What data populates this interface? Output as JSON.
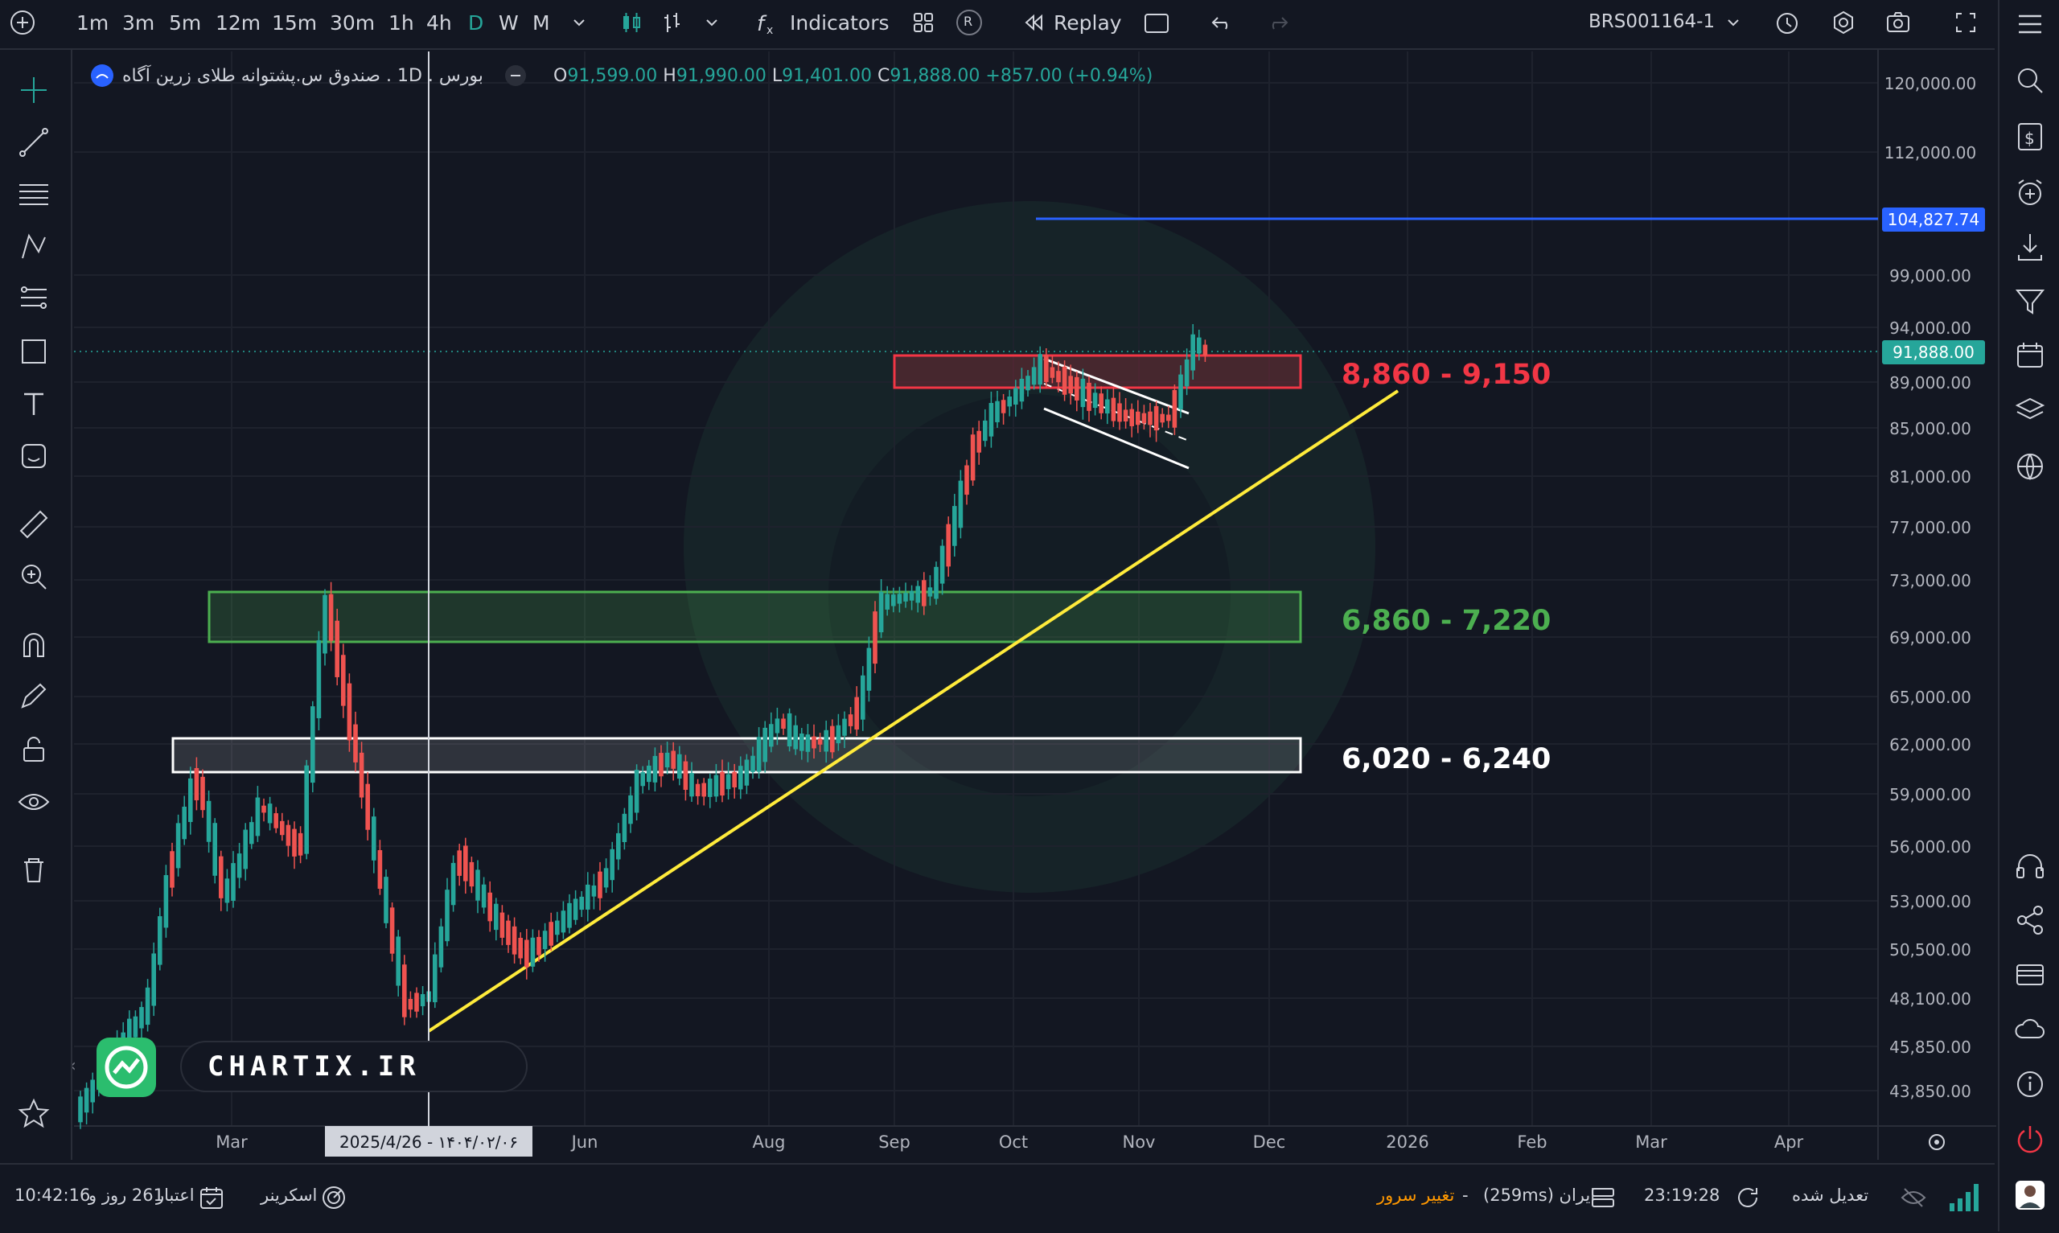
{
  "toolbar": {
    "timeframes": [
      "1m",
      "3m",
      "5m",
      "12m",
      "15m",
      "30m",
      "1h",
      "4h",
      "D",
      "W",
      "M"
    ],
    "active_timeframe": "D",
    "indicators_label": "Indicators",
    "replay_label": "Replay",
    "r_badge": "R",
    "symbol_code": "BRS001164-1"
  },
  "legend": {
    "symbol": "صندوق س.پشتوانه طلای زرین آگاه",
    "interval": "1D",
    "exchange": "بورس",
    "o_label": "O",
    "o_value": "91,599.00",
    "h_label": "H",
    "h_value": "91,990.00",
    "l_label": "L",
    "l_value": "91,401.00",
    "c_label": "C",
    "c_value": "91,888.00",
    "change": "+857.00 (+0.94%)"
  },
  "chart_data": {
    "type": "candlestick",
    "x_ticks": [
      "Mar",
      "Jun",
      "Aug",
      "Sep",
      "Oct",
      "Nov",
      "Dec",
      "2026",
      "Feb",
      "Mar",
      "Apr"
    ],
    "y_ticks": [
      "120,000.00",
      "112,000.00",
      "99,000.00",
      "94,000.00",
      "89,000.00",
      "85,000.00",
      "81,000.00",
      "77,000.00",
      "73,000.00",
      "69,000.00",
      "65,000.00",
      "62,000.00",
      "59,000.00",
      "56,000.00",
      "53,000.00",
      "50,500.00",
      "48,100.00",
      "45,850.00",
      "43,850.00"
    ],
    "crosshair_date": "2025/4/26 - ۱۴۰۴/۰۲/۰۶",
    "last_price": "91,888.00",
    "horizontal_line": {
      "value": "104,827.74",
      "color": "#2962ff"
    },
    "zones": [
      {
        "label": "8,860 - 9,150",
        "color": "#f23645"
      },
      {
        "label": "6,860 - 7,220",
        "color": "#4caf50"
      },
      {
        "label": "6,020 - 6,240",
        "color": "#ffffff"
      }
    ],
    "trendline_color": "#ffeb3b",
    "up_color": "#26a69a",
    "down_color": "#ef5350",
    "grid": true
  },
  "watermark": "CHARTIX.IR",
  "bottom": {
    "timer": "10:42:16",
    "validity_days": "261 روز و",
    "validity_label": "اعتبار",
    "screener_label": "اسکرینر",
    "server_change": "تغییر سرور",
    "dash": "-",
    "server_info": "ایران (259ms)",
    "clock": "23:19:28",
    "adjusted_label": "تعدیل شده"
  },
  "colors": {
    "bg": "#131722",
    "grid": "#1e222d",
    "text": "#d1d4dc",
    "accent_green": "#26a69a"
  }
}
